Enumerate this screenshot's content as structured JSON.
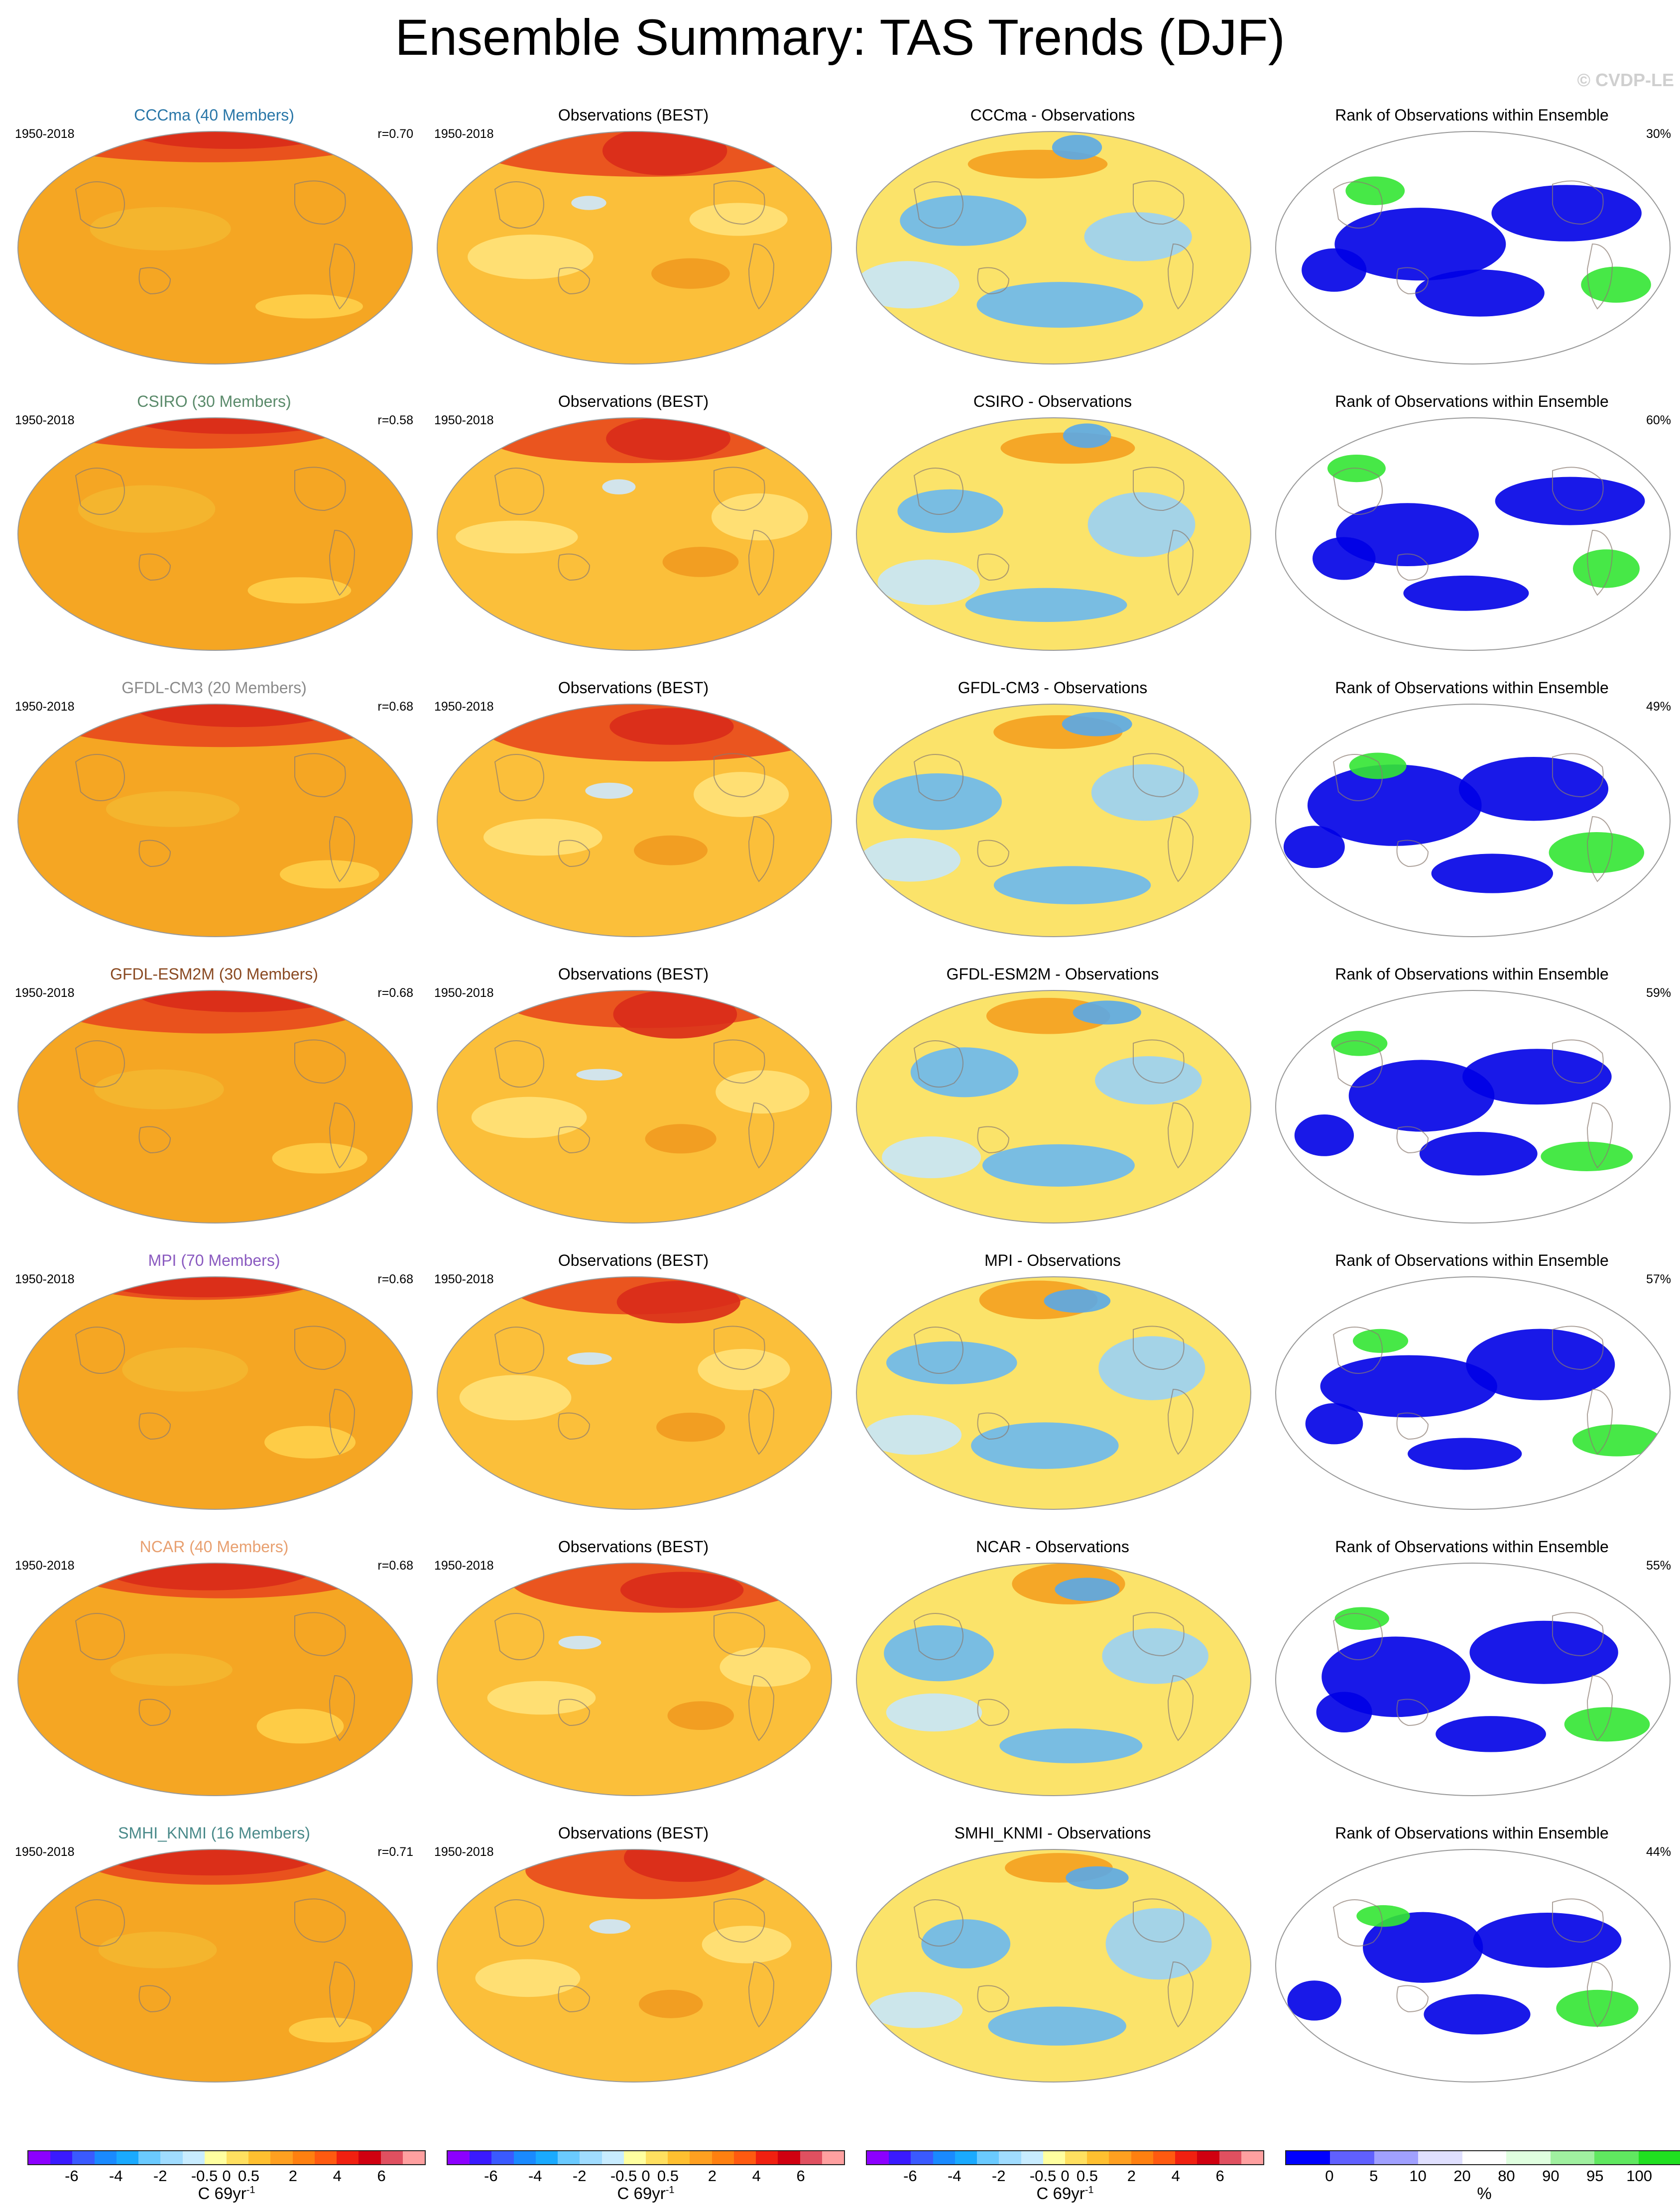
{
  "title": "Ensemble Summary: TAS Trends (DJF)",
  "watermark": "© CVDP-LE",
  "rows": [
    {
      "model_title": "CCCma (40 Members)",
      "model_color": "#2a77a8",
      "period": "1950-2018",
      "corr": "r=0.70",
      "diff_title": "CCCma - Observations",
      "rank_pct": "30%",
      "obs_title": "Observations (BEST)",
      "rank_title": "Rank of Observations within Ensemble"
    },
    {
      "model_title": "CSIRO (30 Members)",
      "model_color": "#5a8a6a",
      "period": "1950-2018",
      "corr": "r=0.58",
      "diff_title": "CSIRO - Observations",
      "rank_pct": "60%",
      "obs_title": "Observations (BEST)",
      "rank_title": "Rank of Observations within Ensemble"
    },
    {
      "model_title": "GFDL-CM3 (20 Members)",
      "model_color": "#8a8a8a",
      "period": "1950-2018",
      "corr": "r=0.68",
      "diff_title": "GFDL-CM3 - Observations",
      "rank_pct": "49%",
      "obs_title": "Observations (BEST)",
      "rank_title": "Rank of Observations within Ensemble"
    },
    {
      "model_title": "GFDL-ESM2M (30 Members)",
      "model_color": "#8a4a22",
      "period": "1950-2018",
      "corr": "r=0.68",
      "diff_title": "GFDL-ESM2M - Observations",
      "rank_pct": "59%",
      "obs_title": "Observations (BEST)",
      "rank_title": "Rank of Observations within Ensemble"
    },
    {
      "model_title": "MPI (70 Members)",
      "model_color": "#8a5ac0",
      "period": "1950-2018",
      "corr": "r=0.68",
      "diff_title": "MPI - Observations",
      "rank_pct": "57%",
      "obs_title": "Observations (BEST)",
      "rank_title": "Rank of Observations within Ensemble"
    },
    {
      "model_title": "NCAR (40 Members)",
      "model_color": "#e8a070",
      "period": "1950-2018",
      "corr": "r=0.68",
      "diff_title": "NCAR - Observations",
      "rank_pct": "55%",
      "obs_title": "Observations (BEST)",
      "rank_title": "Rank of Observations within Ensemble"
    },
    {
      "model_title": "SMHI_KNMI (16 Members)",
      "model_color": "#4a8a8a",
      "period": "1950-2018",
      "corr": "r=0.71",
      "diff_title": "SMHI_KNMI - Observations",
      "rank_pct": "44%",
      "obs_title": "Observations (BEST)",
      "rank_title": "Rank of Observations within Ensemble"
    }
  ],
  "trend_colorbar": {
    "colors": [
      "#8c00ff",
      "#3a1aff",
      "#3a5aff",
      "#1a8aff",
      "#1aaaff",
      "#6acaff",
      "#a0dcff",
      "#c8ecff",
      "#ffffa0",
      "#ffe060",
      "#ffc030",
      "#ffa020",
      "#ff8010",
      "#ff5a10",
      "#f02010",
      "#d00010",
      "#e05060",
      "#ffa0a0"
    ],
    "ticks": [
      "-6",
      "-4",
      "-2",
      "-0.5",
      "0",
      "0.5",
      "2",
      "4",
      "6"
    ],
    "unit_main": "C 69yr",
    "unit_sup": "-1"
  },
  "rank_colorbar": {
    "colors": [
      "#0000ff",
      "#6060ff",
      "#a0a0ff",
      "#e0e0ff",
      "#ffffff",
      "#e0ffe0",
      "#a0f0a0",
      "#60e860",
      "#20e020"
    ],
    "ticks": [
      "0",
      "5",
      "10",
      "20",
      "80",
      "90",
      "95",
      "100"
    ],
    "unit": "%"
  }
}
